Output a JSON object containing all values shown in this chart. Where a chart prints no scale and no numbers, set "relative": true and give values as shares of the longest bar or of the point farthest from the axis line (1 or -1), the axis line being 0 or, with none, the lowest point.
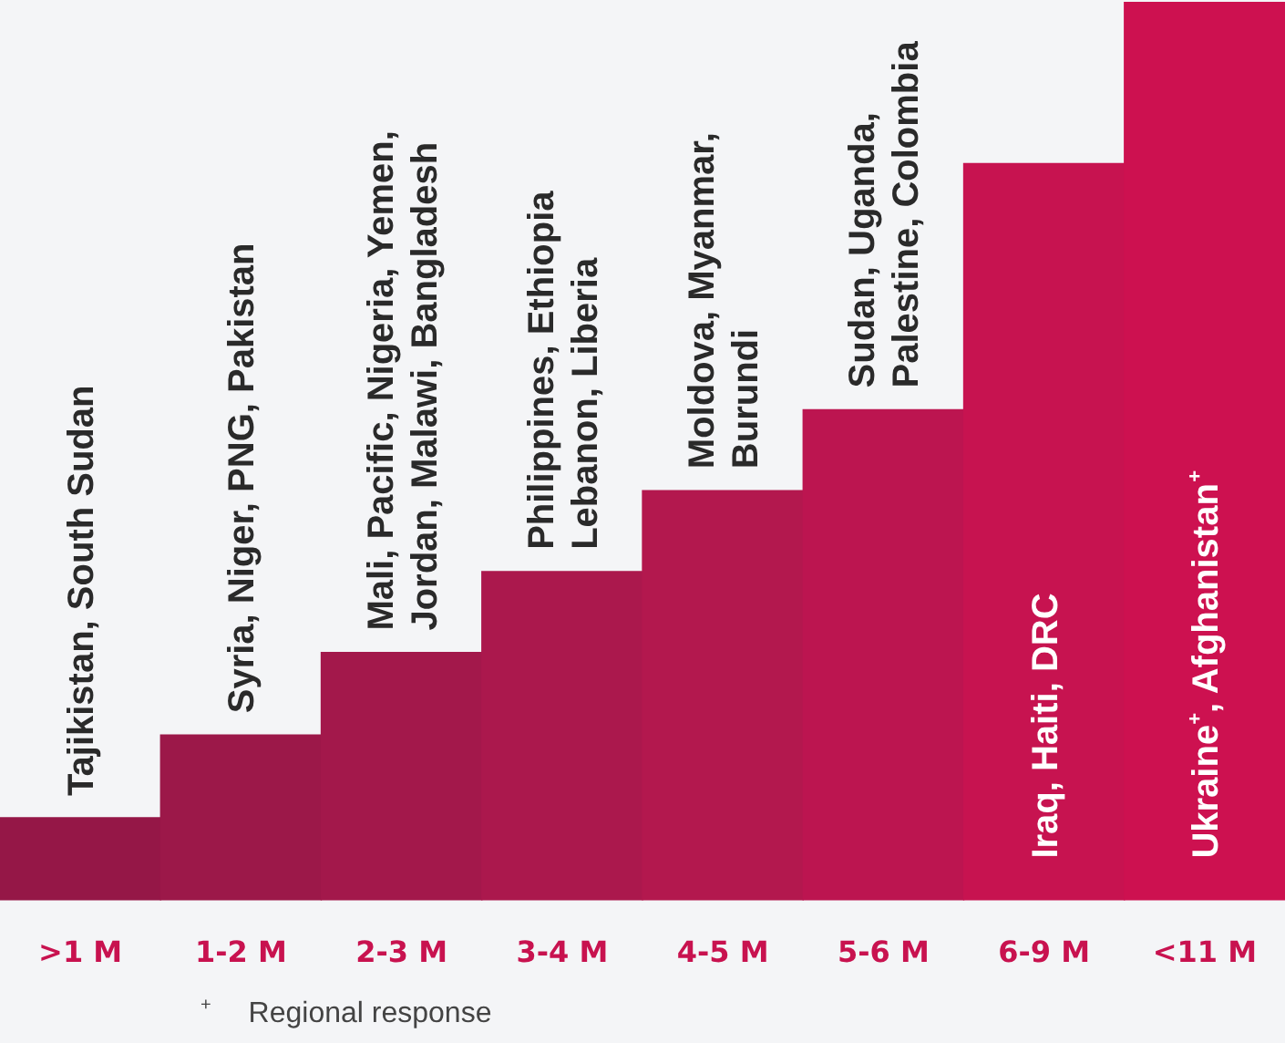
{
  "chart_data": {
    "type": "bar",
    "relative": true,
    "categories": [
      ">1 M",
      "1-2 M",
      "2-3 M",
      "3-4 M",
      "4-5 M",
      "5-6 M",
      "6-9 M",
      "<11 M"
    ],
    "values": [
      0.092,
      0.184,
      0.276,
      0.366,
      0.456,
      0.546,
      0.82,
      1
    ],
    "colors": [
      "#951747",
      "#9c1849",
      "#a3184b",
      "#ab184d",
      "#b3184e",
      "#bc1550",
      "#c71350",
      "#cd1150"
    ],
    "annotations": [
      {
        "text": "Tajikistan, South Sudan",
        "x": ">1 M",
        "y": 0.092
      },
      {
        "text": "Syria, Niger, PNG, Pakistan",
        "x": "1-2 M",
        "y": 0.184
      },
      {
        "text": "Mali, Pacific, Nigeria, Yemen,\nJordan, Malawi, Bangladesh",
        "x": "2-3 M",
        "y": 0.276
      },
      {
        "text": "Philippines, Ethiopia\nLebanon, Liberia",
        "x": "3-4 M",
        "y": 0.366
      },
      {
        "text": "Moldova, Myanmar,\nBurundi",
        "x": "4-5 M",
        "y": 0.456
      },
      {
        "text": "Sudan, Uganda,\nPalestine, Colombia",
        "x": "5-6 M",
        "y": 0.546
      },
      "Iraq, Haiti, DRC",
      "Ukraine$^{+}$, Afghanistan$^{+}$",
      "$^{+}$ Regional response"
    ]
  }
}
